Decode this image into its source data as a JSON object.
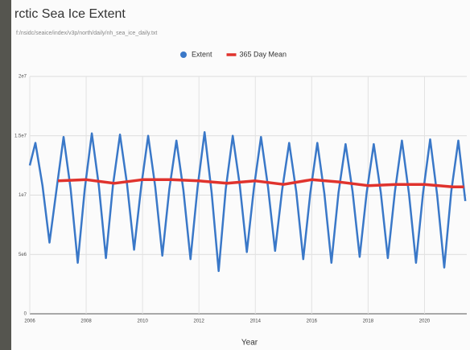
{
  "chart_data": {
    "type": "line",
    "title": "rctic Sea Ice Extent",
    "subtitle": "f:/nsidc/seaice/index/v3p/north/daily/nh_sea_ice_daily.txt",
    "x_label": "Year",
    "xlim": [
      2006,
      2021.5
    ],
    "xticks": [
      2006,
      2008,
      2010,
      2012,
      2014,
      2016,
      2018,
      2020
    ],
    "ylim": [
      0,
      20000000
    ],
    "yticks": [
      {
        "value": 0,
        "label": "0"
      },
      {
        "value": 5000000,
        "label": "5e6"
      },
      {
        "value": 10000000,
        "label": "1e7"
      },
      {
        "value": 15000000,
        "label": "1.5e7"
      },
      {
        "value": 20000000,
        "label": "2e7"
      }
    ],
    "grid": true,
    "legend": "top",
    "series": [
      {
        "name": "Extent",
        "color": "#3a78c8",
        "x": [
          2006.0,
          2006.2,
          2006.45,
          2006.7,
          2006.95,
          2007.2,
          2007.45,
          2007.7,
          2007.95,
          2008.2,
          2008.45,
          2008.7,
          2008.95,
          2009.2,
          2009.45,
          2009.7,
          2009.95,
          2010.2,
          2010.45,
          2010.7,
          2010.95,
          2011.2,
          2011.45,
          2011.7,
          2011.95,
          2012.2,
          2012.45,
          2012.7,
          2012.95,
          2013.2,
          2013.45,
          2013.7,
          2013.95,
          2014.2,
          2014.45,
          2014.7,
          2014.95,
          2015.2,
          2015.45,
          2015.7,
          2015.95,
          2016.2,
          2016.45,
          2016.7,
          2016.95,
          2017.2,
          2017.45,
          2017.7,
          2017.95,
          2018.2,
          2018.45,
          2018.7,
          2018.95,
          2019.2,
          2019.45,
          2019.7,
          2019.95,
          2020.2,
          2020.45,
          2020.7,
          2020.95,
          2021.2,
          2021.45
        ],
        "values": [
          12500000,
          14400000,
          10800000,
          6000000,
          10500000,
          14900000,
          10500000,
          4300000,
          10500000,
          15200000,
          10800000,
          4700000,
          10800000,
          15100000,
          10900000,
          5400000,
          10700000,
          15000000,
          10700000,
          4900000,
          10500000,
          14600000,
          10400000,
          4600000,
          10600000,
          15300000,
          10200000,
          3600000,
          10500000,
          15000000,
          10800000,
          5200000,
          10600000,
          14900000,
          10700000,
          5300000,
          10400000,
          14400000,
          10300000,
          4600000,
          10200000,
          14400000,
          10100000,
          4300000,
          10200000,
          14300000,
          10300000,
          4800000,
          10200000,
          14300000,
          10200000,
          4700000,
          10300000,
          14600000,
          10100000,
          4300000,
          10200000,
          14700000,
          10000000,
          3900000,
          10300000,
          14600000,
          9500000
        ]
      },
      {
        "name": "365 Day Mean",
        "color": "#e0332d",
        "x": [
          2007,
          2008,
          2009,
          2010,
          2011,
          2012,
          2013,
          2014,
          2015,
          2016,
          2017,
          2018,
          2019,
          2020,
          2021,
          2021.4
        ],
        "values": [
          11200000,
          11300000,
          11000000,
          11300000,
          11300000,
          11200000,
          11000000,
          11200000,
          10900000,
          11300000,
          11100000,
          10800000,
          10900000,
          10900000,
          10700000,
          10700000
        ]
      }
    ]
  }
}
